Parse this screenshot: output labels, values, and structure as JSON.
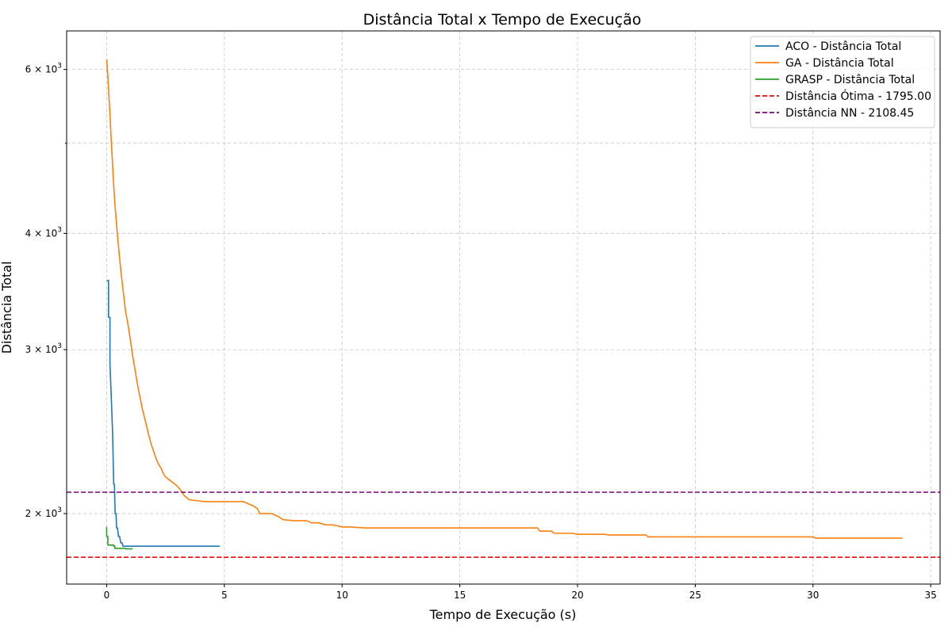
{
  "chart_data": {
    "type": "line",
    "title": "Distância Total x Tempo de Execução",
    "xlabel": "Tempo de Execução (s)",
    "ylabel": "Distância Total",
    "xlim": [
      -1.7,
      35.4
    ],
    "ylim": [
      1680,
      6600
    ],
    "y_scale": "log",
    "x_ticks": [
      0,
      5,
      10,
      15,
      20,
      25,
      30,
      35
    ],
    "y_ticks": [
      {
        "value": 2000,
        "mantissa": "2",
        "base": "10",
        "exp": "3"
      },
      {
        "value": 3000,
        "mantissa": "3",
        "base": "10",
        "exp": "3"
      },
      {
        "value": 4000,
        "mantissa": "4",
        "base": "10",
        "exp": "3"
      },
      {
        "value": 6000,
        "mantissa": "6",
        "base": "10",
        "exp": "3"
      }
    ],
    "y_minor_ticks": [
      5000
    ],
    "grid": true,
    "legend_position": "top-right",
    "series": [
      {
        "name": "ACO - Distância Total",
        "color": "#1f77b4",
        "style": "solid",
        "x": [
          0.0,
          0.08,
          0.08,
          0.14,
          0.14,
          0.2,
          0.25,
          0.3,
          0.33,
          0.36,
          0.4,
          0.42,
          0.46,
          0.5,
          0.55,
          0.6,
          0.65,
          0.7,
          0.8,
          1.0,
          2.0,
          3.0,
          4.0,
          4.8
        ],
        "y": [
          3560,
          3560,
          3250,
          3250,
          2900,
          2650,
          2450,
          2150,
          2150,
          2000,
          2000,
          1930,
          1930,
          1890,
          1890,
          1860,
          1860,
          1845,
          1845,
          1845,
          1845,
          1845,
          1845,
          1845
        ]
      },
      {
        "name": "GA - Distância Total",
        "color": "#ff7f0e",
        "style": "solid",
        "x": [
          0.0,
          0.05,
          0.1,
          0.15,
          0.2,
          0.25,
          0.3,
          0.35,
          0.4,
          0.45,
          0.5,
          0.55,
          0.6,
          0.7,
          0.8,
          0.9,
          1.0,
          1.1,
          1.2,
          1.3,
          1.4,
          1.5,
          1.6,
          1.7,
          1.8,
          1.9,
          2.0,
          2.1,
          2.2,
          2.3,
          2.4,
          2.5,
          2.6,
          2.7,
          2.8,
          3.0,
          3.2,
          3.3,
          3.4,
          3.5,
          3.8,
          4.2,
          5.0,
          5.8,
          6.0,
          6.2,
          6.4,
          6.5,
          6.7,
          7.0,
          7.3,
          7.5,
          8.0,
          8.5,
          8.7,
          9.0,
          9.3,
          9.6,
          10.0,
          10.3,
          11.0,
          12.5,
          15.0,
          17.0,
          18.3,
          18.4,
          18.9,
          19.0,
          19.8,
          20.0,
          21.2,
          21.3,
          22.9,
          23.0,
          25.0,
          30.0,
          30.1,
          31.0,
          33.8
        ],
        "y": [
          6150,
          5900,
          5600,
          5300,
          5000,
          4750,
          4500,
          4300,
          4150,
          4000,
          3880,
          3760,
          3650,
          3470,
          3300,
          3200,
          3080,
          2960,
          2860,
          2760,
          2680,
          2600,
          2540,
          2480,
          2420,
          2370,
          2330,
          2290,
          2260,
          2240,
          2210,
          2190,
          2180,
          2170,
          2160,
          2140,
          2110,
          2090,
          2080,
          2070,
          2065,
          2060,
          2060,
          2060,
          2050,
          2040,
          2025,
          2000,
          2000,
          2000,
          1985,
          1970,
          1965,
          1965,
          1955,
          1955,
          1945,
          1945,
          1935,
          1935,
          1930,
          1930,
          1930,
          1930,
          1930,
          1915,
          1915,
          1905,
          1905,
          1900,
          1900,
          1897,
          1897,
          1888,
          1888,
          1888,
          1882,
          1882,
          1882
        ]
      },
      {
        "name": "GRASP - Distância Total",
        "color": "#2ca02c",
        "style": "solid",
        "x": [
          0.0,
          0.0,
          0.05,
          0.05,
          0.3,
          0.3,
          0.35,
          0.35,
          0.8,
          0.8,
          1.1
        ],
        "y": [
          1935,
          1890,
          1890,
          1850,
          1850,
          1845,
          1845,
          1835,
          1835,
          1833,
          1833
        ]
      },
      {
        "name": "Distância Ótima - 1795.00",
        "color": "#ff0000",
        "style": "dashed",
        "x": [
          -1.7,
          35.4
        ],
        "y": [
          1795,
          1795
        ]
      },
      {
        "name": "Distância NN - 2108.45",
        "color": "#800080",
        "style": "dashed",
        "x": [
          -1.7,
          35.4
        ],
        "y": [
          2108.45,
          2108.45
        ]
      }
    ]
  }
}
